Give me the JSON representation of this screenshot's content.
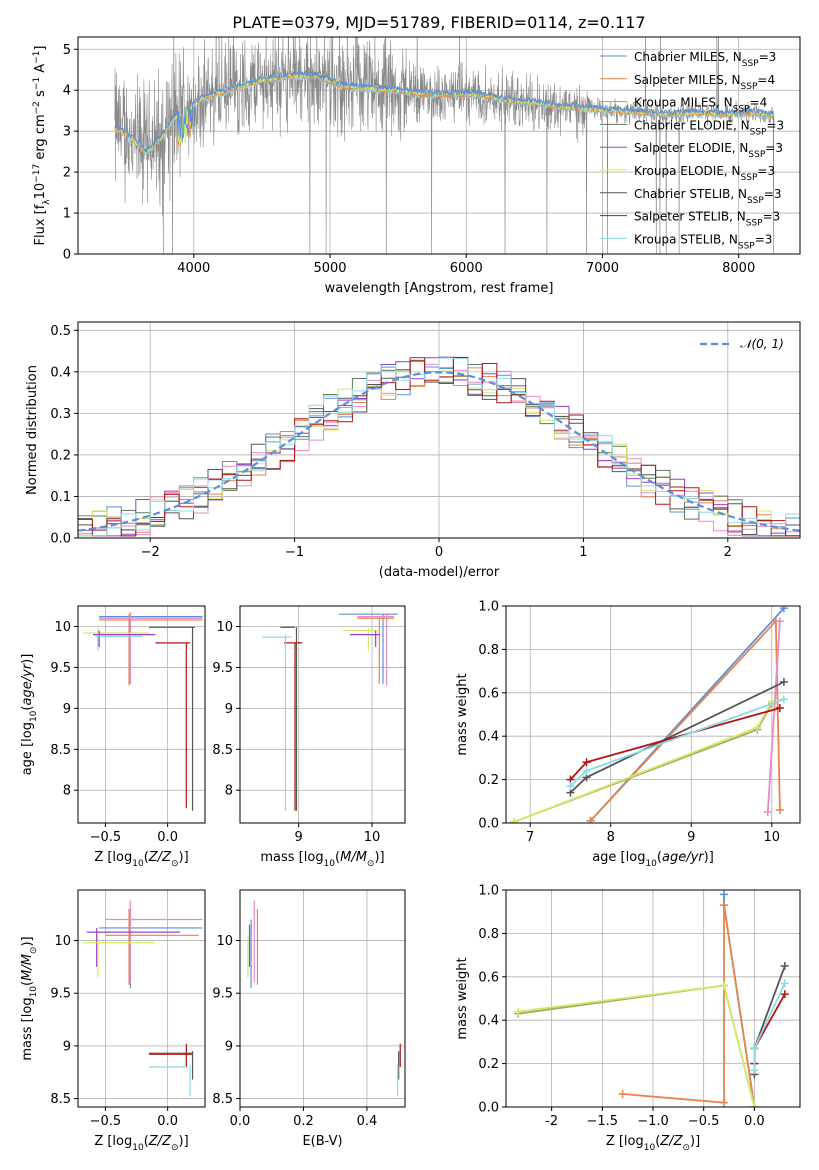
{
  "title": "PLATE=0379, MJD=51789, FIBERID=0114, z=0.117",
  "models": [
    {
      "label": "Chabrier MILES, N",
      "nssp": "=3",
      "color": "#5b8fd9"
    },
    {
      "label": "Salpeter MILES, N",
      "nssp": "=4",
      "color": "#e8844a"
    },
    {
      "label": "Kroupa MILES, N",
      "nssp": "=4",
      "color": "#e8844a"
    },
    {
      "label": "Chabrier ELODIE, N",
      "nssp": "=3",
      "color": "#5a7a5a"
    },
    {
      "label": "Salpeter ELODIE, N",
      "nssp": "=3",
      "color": "#9b3fc9"
    },
    {
      "label": "Kroupa ELODIE, N",
      "nssp": "=3",
      "color": "#d4e86a"
    },
    {
      "label": "Chabrier STELIB, N",
      "nssp": "=3",
      "color": "#555555"
    },
    {
      "label": "Salpeter STELIB, N",
      "nssp": "=3",
      "color": "#b01515"
    },
    {
      "label": "Kroupa STELIB, N",
      "nssp": "=3",
      "color": "#8fd8e8"
    }
  ],
  "chart_data": [
    {
      "type": "line",
      "title": "PLATE=0379, MJD=51789, FIBERID=0114, z=0.117",
      "xlabel": "wavelength [Angstrom, rest frame]",
      "ylabel": "Flux [f_λ 10^-17 erg cm^-2 s^-1 A^-1]",
      "xlim": [
        3150,
        8450
      ],
      "ylim": [
        0,
        5.3
      ],
      "xticks": [
        4000,
        5000,
        6000,
        7000,
        8000
      ],
      "yticks": [
        0,
        1,
        2,
        3,
        4,
        5
      ],
      "continuum": [
        [
          3450,
          3.05
        ],
        [
          3550,
          2.8
        ],
        [
          3650,
          2.5
        ],
        [
          3750,
          2.8
        ],
        [
          3850,
          3.3
        ],
        [
          3950,
          3.6
        ],
        [
          4100,
          3.85
        ],
        [
          4300,
          4.05
        ],
        [
          4500,
          4.25
        ],
        [
          4700,
          4.35
        ],
        [
          4900,
          4.35
        ],
        [
          5100,
          4.1
        ],
        [
          5300,
          4.05
        ],
        [
          5500,
          4.0
        ],
        [
          5700,
          3.9
        ],
        [
          5900,
          3.9
        ],
        [
          6100,
          3.9
        ],
        [
          6300,
          3.75
        ],
        [
          6500,
          3.7
        ],
        [
          6700,
          3.6
        ],
        [
          6900,
          3.55
        ],
        [
          7100,
          3.5
        ],
        [
          7300,
          3.45
        ],
        [
          7500,
          3.42
        ],
        [
          7700,
          3.45
        ],
        [
          7900,
          3.42
        ],
        [
          8100,
          3.45
        ],
        [
          8250,
          3.4
        ]
      ]
    },
    {
      "type": "line",
      "xlabel": "(data-model)/error",
      "ylabel": "Normed distribution",
      "xlim": [
        -2.5,
        2.5
      ],
      "ylim": [
        0,
        0.52
      ],
      "xticks": [
        -2,
        -1,
        0,
        1,
        2
      ],
      "yticks": [
        0.0,
        0.1,
        0.2,
        0.3,
        0.4,
        0.5
      ],
      "series": [
        {
          "name": "N(0,1)",
          "type": "gaussian",
          "mean": 0,
          "sigma": 1
        }
      ]
    },
    {
      "type": "scatter",
      "xlabel": "Z [log10(Z/Z⊙)]",
      "ylabel": "age [log10(age/yr)]",
      "xlim": [
        -0.72,
        0.3
      ],
      "ylim": [
        7.6,
        10.25
      ],
      "xticks": [
        -0.5,
        0.0
      ],
      "yticks": [
        8.0,
        8.5,
        9.0,
        9.5,
        10.0
      ]
    },
    {
      "type": "scatter",
      "xlabel": "mass [log10(M/M⊙)]",
      "xlim": [
        8.2,
        10.45
      ],
      "ylim": [
        7.6,
        10.25
      ],
      "xticks": [
        9,
        10
      ],
      "yticks": [
        8.0,
        8.5,
        9.0,
        9.5,
        10.0
      ]
    },
    {
      "type": "line",
      "xlabel": "age [log10(age/yr)]",
      "ylabel": "mass weight",
      "xlim": [
        6.7,
        10.35
      ],
      "ylim": [
        0,
        1.0
      ],
      "xticks": [
        7,
        8,
        9,
        10
      ],
      "yticks": [
        0.0,
        0.2,
        0.4,
        0.6,
        0.8,
        1.0
      ],
      "series": [
        {
          "name": "Chabrier MILES",
          "x": [
            7.75,
            10.15
          ],
          "y": [
            0.01,
            0.99
          ]
        },
        {
          "name": "Salpeter MILES",
          "x": [
            7.75,
            10.05,
            10.1,
            10.05
          ],
          "y": [
            0.01,
            0.93,
            0.06,
            0.93
          ]
        },
        {
          "name": "Chabrier ELODIE",
          "x": [
            6.8,
            9.82,
            10.0
          ],
          "y": [
            0.005,
            0.43,
            0.55
          ]
        },
        {
          "name": "Kroupa ELODIE",
          "x": [
            6.8,
            9.82,
            10.0
          ],
          "y": [
            0.005,
            0.44,
            0.56
          ]
        },
        {
          "name": "Salpeter ELODIE",
          "x": [
            9.95,
            10.1
          ],
          "y": [
            0.05,
            0.93
          ]
        },
        {
          "name": "Chabrier STELIB",
          "x": [
            7.5,
            7.7,
            10.15
          ],
          "y": [
            0.14,
            0.21,
            0.65
          ]
        },
        {
          "name": "Salpeter STELIB",
          "x": [
            7.5,
            7.7,
            10.1
          ],
          "y": [
            0.2,
            0.28,
            0.53
          ]
        },
        {
          "name": "Kroupa STELIB",
          "x": [
            7.5,
            7.7,
            10.15
          ],
          "y": [
            0.17,
            0.24,
            0.57
          ]
        }
      ]
    },
    {
      "type": "scatter",
      "xlabel": "Z [log10(Z/Z⊙)]",
      "ylabel": "mass [log10(M/M⊙)]",
      "xlim": [
        -0.72,
        0.3
      ],
      "ylim": [
        8.42,
        10.48
      ],
      "xticks": [
        -0.5,
        0.0
      ],
      "yticks": [
        8.5,
        9.0,
        9.5,
        10.0
      ]
    },
    {
      "type": "scatter",
      "xlabel": "E(B-V)",
      "xlim": [
        0,
        0.52
      ],
      "ylim": [
        8.42,
        10.48
      ],
      "xticks": [
        0.0,
        0.2,
        0.4
      ],
      "yticks": [
        8.5,
        9.0,
        9.5,
        10.0
      ]
    },
    {
      "type": "line",
      "xlabel": "Z [log10(Z/Z⊙)]",
      "ylabel": "mass weight",
      "xlim": [
        -2.45,
        0.45
      ],
      "ylim": [
        0,
        1.0
      ],
      "xticks": [
        -2.0,
        -1.5,
        -1.0,
        -0.5,
        0.0
      ],
      "yticks": [
        0.0,
        0.2,
        0.4,
        0.6,
        0.8,
        1.0
      ],
      "series": [
        {
          "name": "Chabrier MILES",
          "x": [
            -0.3,
            -0.3,
            0.0
          ],
          "y": [
            0.98,
            0.93,
            0.0
          ]
        },
        {
          "name": "Salpeter MILES",
          "x": [
            -1.3,
            -0.3,
            -0.3,
            0.0
          ],
          "y": [
            0.06,
            0.02,
            0.93,
            0.0
          ]
        },
        {
          "name": "Chabrier ELODIE",
          "x": [
            -2.33,
            -0.3,
            0.0
          ],
          "y": [
            0.43,
            0.56,
            0.0
          ]
        },
        {
          "name": "Kroupa ELODIE",
          "x": [
            -2.33,
            -0.3,
            0.0
          ],
          "y": [
            0.44,
            0.56,
            0.0
          ]
        },
        {
          "name": "Chabrier STELIB",
          "x": [
            0.0,
            0.0,
            0.3
          ],
          "y": [
            0.15,
            0.27,
            0.65
          ]
        },
        {
          "name": "Salpeter STELIB",
          "x": [
            0.0,
            0.0,
            0.3
          ],
          "y": [
            0.2,
            0.27,
            0.52
          ]
        },
        {
          "name": "Kroupa STELIB",
          "x": [
            0.0,
            0.0,
            0.3
          ],
          "y": [
            0.17,
            0.27,
            0.57
          ]
        }
      ]
    }
  ]
}
